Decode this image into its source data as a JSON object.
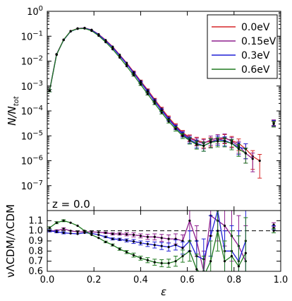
{
  "chart_data": {
    "type": "line",
    "upper_panel": {
      "ylabel": "N/N_tot",
      "yscale": "log",
      "ylim": [
        1e-08,
        1
      ],
      "y_tick_labels": [
        "10^-7",
        "10^-6",
        "10^-5",
        "10^-4",
        "10^-3",
        "10^-2",
        "10^-1",
        "10^0"
      ],
      "annotation": "z = 0.0",
      "legend": {
        "placement": "top-right",
        "entries": [
          "0.0eV",
          "0.15eV",
          "0.3eV",
          "0.6eV"
        ]
      },
      "x": [
        0.01,
        0.04,
        0.07,
        0.1,
        0.13,
        0.16,
        0.19,
        0.22,
        0.25,
        0.28,
        0.31,
        0.34,
        0.37,
        0.4,
        0.43,
        0.46,
        0.49,
        0.52,
        0.55,
        0.58,
        0.61,
        0.64,
        0.67,
        0.7,
        0.73,
        0.76,
        0.79,
        0.82,
        0.85,
        0.88,
        0.91,
        0.94,
        0.97
      ],
      "series": [
        {
          "name": "0.0eV",
          "color": "#d62728",
          "y": [
            0.00065,
            0.019,
            0.072,
            0.16,
            0.205,
            0.215,
            0.18,
            0.12,
            0.07,
            0.038,
            0.018,
            0.0085,
            0.0037,
            0.0016,
            0.0007,
            0.00029,
            0.000125,
            5.5e-05,
            2.6e-05,
            1.35e-05,
            8.5e-06,
            6.5e-06,
            5.5e-06,
            6e-06,
            7e-06,
            8e-06,
            6.5e-06,
            5e-06,
            3e-06,
            1.5e-06,
            1e-06,
            null,
            3.2e-05
          ],
          "err": [
            0.1,
            0.05,
            0.03,
            0.02,
            0.02,
            0.02,
            0.02,
            0.03,
            0.03,
            0.04,
            0.05,
            0.06,
            0.07,
            0.08,
            0.09,
            0.1,
            0.12,
            0.14,
            0.18,
            0.22,
            0.28,
            0.35,
            0.4,
            0.4,
            0.4,
            0.4,
            0.45,
            0.5,
            0.6,
            0.7,
            0.8,
            0.8,
            0.25
          ]
        },
        {
          "name": "0.15eV",
          "color": "#8e1e8e",
          "y": [
            0.00065,
            0.019,
            0.071,
            0.158,
            0.203,
            0.213,
            0.178,
            0.118,
            0.068,
            0.037,
            0.0175,
            0.0082,
            0.0035,
            0.00152,
            0.00066,
            0.00027,
            0.000115,
            5e-05,
            2.4e-05,
            1.25e-05,
            8e-06,
            6e-06,
            5e-06,
            7e-06,
            8e-06,
            8.5e-06,
            6e-06,
            4e-06,
            2e-06,
            1.2e-06,
            null,
            null,
            3.5e-05
          ],
          "err": [
            0.1,
            0.05,
            0.03,
            0.02,
            0.02,
            0.02,
            0.02,
            0.03,
            0.03,
            0.04,
            0.05,
            0.06,
            0.07,
            0.08,
            0.09,
            0.1,
            0.12,
            0.14,
            0.18,
            0.22,
            0.28,
            0.35,
            0.4,
            0.4,
            0.4,
            0.4,
            0.45,
            0.5,
            0.6,
            0.7,
            0.8,
            0.8,
            0.25
          ]
        },
        {
          "name": "0.3eV",
          "color": "#1f1fd6",
          "y": [
            0.00065,
            0.0185,
            0.07,
            0.155,
            0.2,
            0.21,
            0.175,
            0.115,
            0.065,
            0.035,
            0.0165,
            0.0077,
            0.0033,
            0.0014,
            0.0006,
            0.000245,
            0.000105,
            4.6e-05,
            2.2e-05,
            1.15e-05,
            7e-06,
            5e-06,
            4e-06,
            5.5e-06,
            7e-06,
            6.5e-06,
            5e-06,
            3.5e-06,
            3e-06,
            null,
            null,
            null,
            3.3e-05
          ],
          "err": [
            0.1,
            0.05,
            0.03,
            0.02,
            0.02,
            0.02,
            0.02,
            0.03,
            0.03,
            0.04,
            0.05,
            0.06,
            0.07,
            0.08,
            0.09,
            0.1,
            0.12,
            0.14,
            0.18,
            0.22,
            0.28,
            0.35,
            0.4,
            0.4,
            0.4,
            0.4,
            0.45,
            0.5,
            0.6,
            0.7,
            0.8,
            0.8,
            0.25
          ]
        },
        {
          "name": "0.6eV",
          "color": "#207a20",
          "y": [
            0.00065,
            0.018,
            0.072,
            0.16,
            0.2,
            0.205,
            0.165,
            0.105,
            0.058,
            0.03,
            0.014,
            0.0063,
            0.0027,
            0.00115,
            0.00048,
            0.0002,
            8.6e-05,
            3.8e-05,
            1.9e-05,
            1e-05,
            6.5e-06,
            4.5e-06,
            4e-06,
            5.5e-06,
            6e-06,
            6e-06,
            5e-06,
            3e-06,
            2e-06,
            null,
            null,
            null,
            3e-05
          ],
          "err": [
            0.1,
            0.05,
            0.03,
            0.02,
            0.02,
            0.02,
            0.02,
            0.03,
            0.03,
            0.04,
            0.05,
            0.06,
            0.07,
            0.08,
            0.09,
            0.1,
            0.12,
            0.14,
            0.18,
            0.22,
            0.28,
            0.35,
            0.4,
            0.4,
            0.4,
            0.4,
            0.45,
            0.5,
            0.6,
            0.7,
            0.8,
            0.8,
            0.25
          ]
        }
      ]
    },
    "lower_panel": {
      "ylabel": "νΛCDM/ΛCDM",
      "xlabel": "ε",
      "ylim": [
        0.6,
        1.2
      ],
      "y_tick_labels": [
        "0.6",
        "0.7",
        "0.8",
        "0.9",
        "1.0",
        "1.1"
      ],
      "reference_line": 1.0,
      "x": [
        0.01,
        0.04,
        0.07,
        0.1,
        0.13,
        0.16,
        0.19,
        0.22,
        0.25,
        0.28,
        0.31,
        0.34,
        0.37,
        0.4,
        0.43,
        0.46,
        0.49,
        0.52,
        0.55,
        0.58,
        0.61,
        0.64,
        0.67,
        0.7,
        0.73,
        0.76,
        0.79,
        0.82,
        0.85,
        0.88,
        0.91,
        0.94,
        0.97
      ],
      "series": [
        {
          "name": "0.15eV",
          "color": "#8e1e8e",
          "y": [
            1.0,
            1.0,
            1.02,
            1.0,
            0.99,
            0.99,
            0.99,
            0.985,
            0.98,
            0.97,
            0.97,
            0.965,
            0.96,
            0.95,
            0.94,
            0.94,
            0.93,
            0.92,
            0.92,
            0.9,
            1.1,
            0.9,
            0.6,
            1.15,
            1.1,
            1.05,
            0.95,
            0.85,
            0.7,
            null,
            null,
            null,
            1.06
          ],
          "err": [
            0.01,
            0.01,
            0.01,
            0.005,
            0.005,
            0.005,
            0.005,
            0.006,
            0.008,
            0.01,
            0.012,
            0.015,
            0.02,
            0.02,
            0.025,
            0.03,
            0.035,
            0.04,
            0.05,
            0.06,
            0.1,
            0.15,
            0.2,
            0.2,
            0.2,
            0.2,
            0.25,
            0.3,
            0.35,
            0.4,
            0.4,
            0.4,
            0.02
          ]
        },
        {
          "name": "0.3eV",
          "color": "#1f1fd6",
          "y": [
            1.0,
            0.99,
            0.98,
            0.975,
            0.97,
            0.98,
            0.975,
            0.96,
            0.94,
            0.92,
            0.915,
            0.905,
            0.895,
            0.88,
            0.87,
            0.86,
            0.85,
            0.84,
            0.86,
            0.83,
            0.9,
            0.75,
            0.72,
            0.95,
            1.2,
            0.8,
            0.8,
            0.7,
            0.9,
            null,
            null,
            null,
            1.03
          ],
          "err": [
            0.01,
            0.01,
            0.01,
            0.005,
            0.005,
            0.005,
            0.005,
            0.006,
            0.008,
            0.01,
            0.012,
            0.015,
            0.02,
            0.02,
            0.025,
            0.03,
            0.035,
            0.04,
            0.05,
            0.06,
            0.1,
            0.15,
            0.2,
            0.2,
            0.2,
            0.2,
            0.25,
            0.3,
            0.35,
            0.4,
            0.4,
            0.4,
            0.02
          ]
        },
        {
          "name": "0.6eV",
          "color": "#207a20",
          "y": [
            1.03,
            1.08,
            1.1,
            1.08,
            1.05,
            1.0,
            0.96,
            0.93,
            0.89,
            0.86,
            0.82,
            0.79,
            0.76,
            0.73,
            0.71,
            0.69,
            0.68,
            0.68,
            0.7,
            0.75,
            0.8,
            0.62,
            0.55,
            0.7,
            1.0,
            0.7,
            0.75,
            0.65,
            0.78,
            null,
            null,
            null,
            1.0
          ],
          "err": [
            0.01,
            0.01,
            0.01,
            0.005,
            0.005,
            0.005,
            0.005,
            0.006,
            0.008,
            0.01,
            0.012,
            0.015,
            0.02,
            0.02,
            0.025,
            0.03,
            0.035,
            0.04,
            0.05,
            0.06,
            0.1,
            0.15,
            0.2,
            0.2,
            0.2,
            0.2,
            0.25,
            0.3,
            0.35,
            0.4,
            0.4,
            0.4,
            0.02
          ]
        }
      ]
    },
    "xlim": [
      0.0,
      1.0
    ],
    "x_tick_labels": [
      "0.0",
      "0.2",
      "0.4",
      "0.6",
      "0.8",
      "1.0"
    ]
  }
}
